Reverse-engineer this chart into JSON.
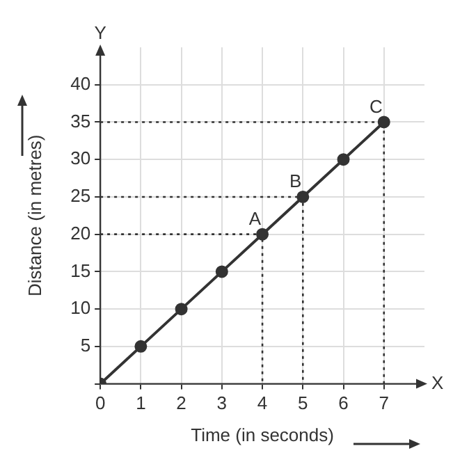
{
  "chart_data": {
    "type": "line",
    "xlabel": "Time (in seconds)",
    "ylabel": "Distance (in metres)",
    "x": [
      0,
      1,
      2,
      3,
      4,
      5,
      6,
      7
    ],
    "series": [
      {
        "color": "#333333",
        "values": [
          0,
          5,
          10,
          15,
          20,
          25,
          30,
          35
        ]
      },
      {
        "color": "#333333",
        "x": [
          0,
          4,
          4
        ],
        "values": [
          20,
          20,
          0
        ],
        "line_style": "dotted",
        "marker": "none"
      },
      {
        "color": "#333333",
        "x": [
          0,
          5,
          5
        ],
        "values": [
          25,
          25,
          0
        ],
        "line_style": "dotted",
        "marker": "none"
      },
      {
        "color": "#333333",
        "x": [
          0,
          7,
          7
        ],
        "values": [
          35,
          35,
          0
        ],
        "line_style": "dotted",
        "marker": "none"
      }
    ],
    "xlim": [
      0,
      8
    ],
    "xticks": [
      0,
      1,
      2,
      3,
      4,
      5,
      6,
      7
    ],
    "ylim": [
      0,
      45
    ],
    "yticks": [
      {
        "value": 0,
        "label": null
      },
      5,
      10,
      15,
      20,
      25,
      30,
      35,
      40
    ],
    "grid": true,
    "marker": "circle",
    "line_style": "solid",
    "legend": false,
    "annotations": [
      "X",
      "Y",
      {
        "text": "A",
        "x": 4,
        "y": 20
      },
      {
        "text": "B",
        "x": 5,
        "y": 25
      },
      {
        "text": "C",
        "x": 7,
        "y": 35
      }
    ]
  }
}
